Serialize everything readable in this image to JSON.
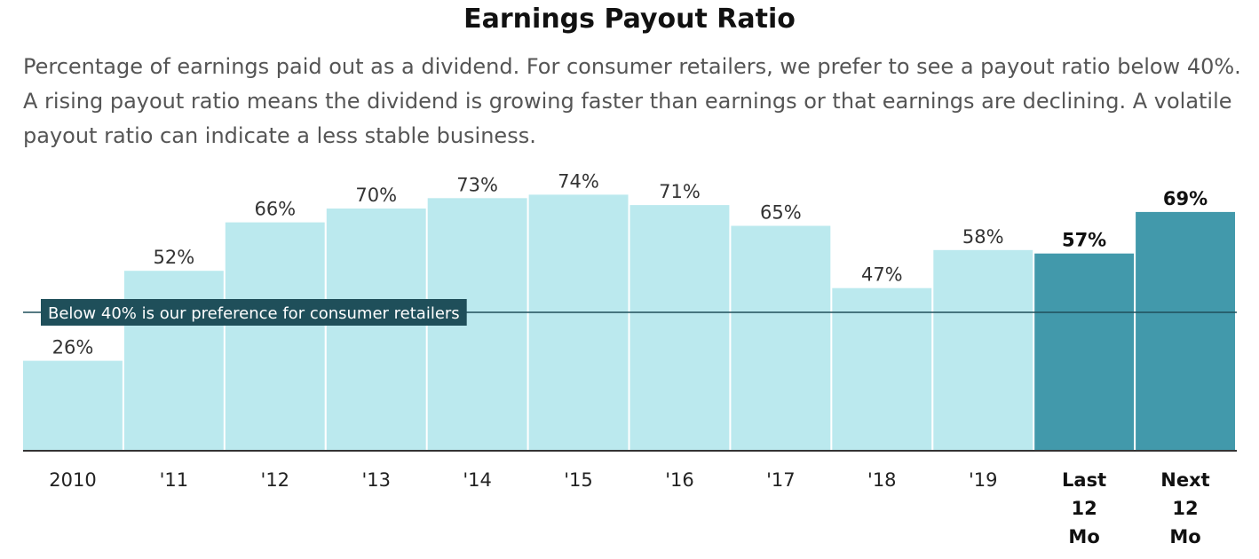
{
  "chart_data": {
    "type": "bar",
    "title": "Earnings Payout Ratio",
    "subtitle": "Percentage of earnings paid out as a dividend. For consumer retailers, we prefer to see a payout ratio below 40%. A rising payout ratio means the dividend is growing faster than earnings or that earnings are declining. A volatile payout ratio can indicate a less stable business.",
    "categories": [
      [
        "2010"
      ],
      [
        "'11"
      ],
      [
        "'12"
      ],
      [
        "'13"
      ],
      [
        "'14"
      ],
      [
        "'15"
      ],
      [
        "'16"
      ],
      [
        "'17"
      ],
      [
        "'18"
      ],
      [
        "'19"
      ],
      [
        "Last",
        "12",
        "Mo"
      ],
      [
        "Next",
        "12",
        "Mo"
      ]
    ],
    "values": [
      26,
      52,
      66,
      70,
      73,
      74,
      71,
      65,
      47,
      58,
      57,
      69
    ],
    "value_labels": [
      "26%",
      "52%",
      "66%",
      "70%",
      "73%",
      "74%",
      "71%",
      "65%",
      "47%",
      "58%",
      "57%",
      "69%"
    ],
    "highlighted": [
      false,
      false,
      false,
      false,
      false,
      false,
      false,
      false,
      false,
      false,
      true,
      true
    ],
    "ylim": [
      0,
      100
    ],
    "grid": false,
    "reference_line": {
      "value": 40,
      "label": "Below 40% is our preference for consumer retailers"
    },
    "colors": {
      "bar": "#bbe9ee",
      "bar_highlight": "#4299ab",
      "reference_line": "#1f4f5a",
      "reference_label_bg": "#1f4f5a",
      "axis": "#333333"
    }
  }
}
